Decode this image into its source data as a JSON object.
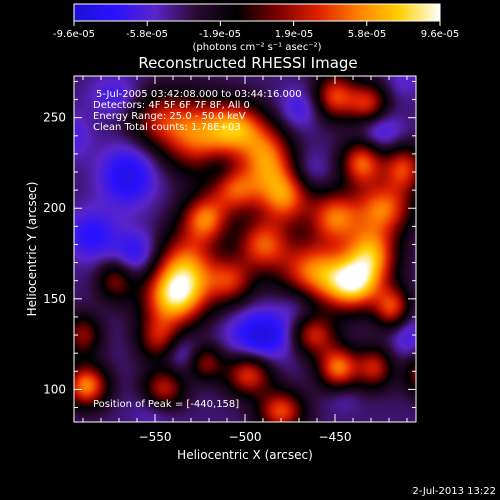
{
  "colorbar": {
    "tick_labels": [
      "-9.6e-05",
      "-5.8e-05",
      "-1.9e-05",
      "1.9e-05",
      "5.8e-05",
      "9.6e-05"
    ],
    "unit_label": "(photons cm⁻² s⁻¹ asec⁻²)",
    "stops": [
      "#1c10d0",
      "#2a12ff",
      "#5a24c8",
      "#2a0a32",
      "#000000",
      "#7a0000",
      "#e02000",
      "#ff8000",
      "#ffd000",
      "#ffffff"
    ]
  },
  "annotations": {
    "time_range": "5-Jul-2005 03:42:08.000 to 03:44:16.000",
    "detectors": "Detectors: 4F 5F 6F 7F 8F, All 0",
    "energy_range": "Energy Range: 25.0 - 50.0 keV",
    "clean_counts": "Clean     Total counts: 1.78E+03",
    "peak_position": "Position of Peak = [-440,158]"
  },
  "footer": {
    "date": "2-Jul-2013 13:22"
  },
  "chart_data": {
    "type": "heatmap",
    "title": "Reconstructed RHESSI Image",
    "xlabel": "Heliocentric X (arcsec)",
    "ylabel": "Heliocentric Y (arcsec)",
    "xlim": [
      -595,
      -405
    ],
    "ylim": [
      82,
      273
    ],
    "x_ticks": [
      -550,
      -500,
      -450
    ],
    "y_ticks": [
      100,
      150,
      200,
      250
    ],
    "x_tick_labels": [
      "−550",
      "−500",
      "−450"
    ],
    "y_tick_labels": [
      "100",
      "150",
      "200",
      "250"
    ],
    "colorbar_range": [
      -9.6e-05,
      9.6e-05
    ],
    "peak": [
      -440,
      158
    ],
    "blobs": [
      {
        "x": -548,
        "y": 249,
        "value": 4e-05,
        "sx": 12,
        "sy": 11
      },
      {
        "x": -527,
        "y": 240,
        "value": 6.5e-05,
        "sx": 13,
        "sy": 14
      },
      {
        "x": -505,
        "y": 244,
        "value": 7.5e-05,
        "sx": 11,
        "sy": 10
      },
      {
        "x": -488,
        "y": 228,
        "value": 7e-05,
        "sx": 10,
        "sy": 12
      },
      {
        "x": -478,
        "y": 207,
        "value": 7.5e-05,
        "sx": 10,
        "sy": 11
      },
      {
        "x": -505,
        "y": 210,
        "value": 6e-05,
        "sx": 10,
        "sy": 9
      },
      {
        "x": -522,
        "y": 194,
        "value": 7e-05,
        "sx": 9,
        "sy": 9
      },
      {
        "x": -533,
        "y": 166,
        "value": 8e-05,
        "sx": 12,
        "sy": 14
      },
      {
        "x": -540,
        "y": 150,
        "value": 7.5e-05,
        "sx": 12,
        "sy": 11
      },
      {
        "x": -548,
        "y": 128,
        "value": 4.5e-05,
        "sx": 8,
        "sy": 9
      },
      {
        "x": -508,
        "y": 160,
        "value": 5e-05,
        "sx": 9,
        "sy": 9
      },
      {
        "x": -490,
        "y": 180,
        "value": 6.5e-05,
        "sx": 10,
        "sy": 10
      },
      {
        "x": -462,
        "y": 165,
        "value": 7.5e-05,
        "sx": 13,
        "sy": 12
      },
      {
        "x": -440,
        "y": 158,
        "value": 9.6e-05,
        "sx": 11,
        "sy": 10
      },
      {
        "x": -430,
        "y": 175,
        "value": 8e-05,
        "sx": 10,
        "sy": 11
      },
      {
        "x": -450,
        "y": 195,
        "value": 7e-05,
        "sx": 10,
        "sy": 10
      },
      {
        "x": -423,
        "y": 200,
        "value": 7e-05,
        "sx": 11,
        "sy": 10
      },
      {
        "x": -435,
        "y": 225,
        "value": 7e-05,
        "sx": 8,
        "sy": 9
      },
      {
        "x": -412,
        "y": 222,
        "value": 6e-05,
        "sx": 8,
        "sy": 9
      },
      {
        "x": -450,
        "y": 262,
        "value": 6e-05,
        "sx": 8,
        "sy": 9
      },
      {
        "x": -432,
        "y": 258,
        "value": 5.5e-05,
        "sx": 8,
        "sy": 8
      },
      {
        "x": -462,
        "y": 130,
        "value": 5.5e-05,
        "sx": 9,
        "sy": 8
      },
      {
        "x": -448,
        "y": 112,
        "value": 7.5e-05,
        "sx": 8,
        "sy": 8
      },
      {
        "x": -428,
        "y": 112,
        "value": 5e-05,
        "sx": 7,
        "sy": 8
      },
      {
        "x": -498,
        "y": 108,
        "value": 6e-05,
        "sx": 9,
        "sy": 8
      },
      {
        "x": -480,
        "y": 88,
        "value": 6.5e-05,
        "sx": 9,
        "sy": 8
      },
      {
        "x": -588,
        "y": 102,
        "value": 8e-05,
        "sx": 8,
        "sy": 8
      },
      {
        "x": -545,
        "y": 100,
        "value": 5e-05,
        "sx": 8,
        "sy": 8
      },
      {
        "x": -418,
        "y": 145,
        "value": 6e-05,
        "sx": 7,
        "sy": 8
      },
      {
        "x": -400,
        "y": 108,
        "value": 4.5e-05,
        "sx": 8,
        "sy": 8
      },
      {
        "x": -590,
        "y": 130,
        "value": 4e-05,
        "sx": 7,
        "sy": 8
      },
      {
        "x": -522,
        "y": 115,
        "value": 4e-05,
        "sx": 7,
        "sy": 7
      },
      {
        "x": -572,
        "y": 160,
        "value": 3.5e-05,
        "sx": 7,
        "sy": 8
      },
      {
        "x": -565,
        "y": 218,
        "value": -6e-05,
        "sx": 11,
        "sy": 12
      },
      {
        "x": -585,
        "y": 185,
        "value": -5e-05,
        "sx": 10,
        "sy": 10
      },
      {
        "x": -560,
        "y": 175,
        "value": -5e-05,
        "sx": 9,
        "sy": 9
      },
      {
        "x": -490,
        "y": 130,
        "value": -6.5e-05,
        "sx": 13,
        "sy": 10
      },
      {
        "x": -470,
        "y": 148,
        "value": -3.5e-05,
        "sx": 8,
        "sy": 8
      },
      {
        "x": -535,
        "y": 120,
        "value": -4e-05,
        "sx": 8,
        "sy": 7
      },
      {
        "x": -572,
        "y": 262,
        "value": -4e-05,
        "sx": 10,
        "sy": 8
      },
      {
        "x": -425,
        "y": 242,
        "value": -4.5e-05,
        "sx": 9,
        "sy": 8
      },
      {
        "x": -470,
        "y": 255,
        "value": -4e-05,
        "sx": 8,
        "sy": 8
      },
      {
        "x": -465,
        "y": 220,
        "value": -3.5e-05,
        "sx": 8,
        "sy": 8
      },
      {
        "x": -515,
        "y": 222,
        "value": -3e-05,
        "sx": 6,
        "sy": 6
      },
      {
        "x": -410,
        "y": 130,
        "value": -4e-05,
        "sx": 7,
        "sy": 9
      },
      {
        "x": -595,
        "y": 240,
        "value": -3.5e-05,
        "sx": 7,
        "sy": 9
      },
      {
        "x": -550,
        "y": 88,
        "value": -3e-05,
        "sx": 9,
        "sy": 7
      },
      {
        "x": -412,
        "y": 270,
        "value": -3e-05,
        "sx": 7,
        "sy": 7
      },
      {
        "x": -445,
        "y": 95,
        "value": -2.5e-05,
        "sx": 6,
        "sy": 6
      }
    ]
  }
}
